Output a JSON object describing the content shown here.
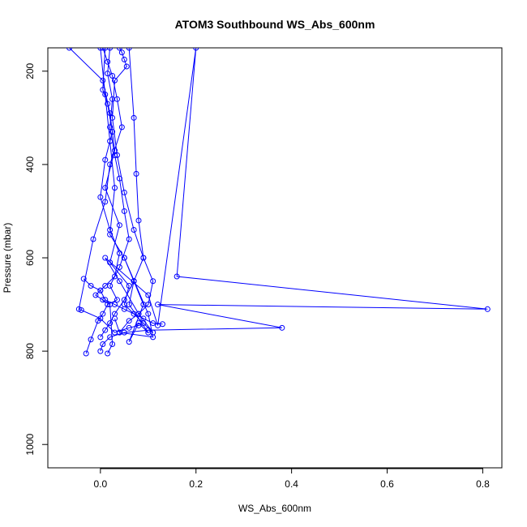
{
  "chart_data": {
    "type": "line",
    "title": "ATOM3 Southbound WS_Abs_600nm",
    "xlabel": "WS_Abs_600nm",
    "ylabel": "Pressure (mbar)",
    "xlim": [
      -0.11,
      0.84
    ],
    "ylim": [
      1050,
      150
    ],
    "y_reversed": true,
    "x_ticks": [
      0.0,
      0.2,
      0.4,
      0.6,
      0.8
    ],
    "x_tick_labels": [
      "0.0",
      "0.2",
      "0.4",
      "0.6",
      "0.8"
    ],
    "y_ticks": [
      200,
      400,
      600,
      800,
      1000
    ],
    "y_tick_labels": [
      "200",
      "400",
      "600",
      "800",
      "1000"
    ],
    "grid": false,
    "legend": "none",
    "series_color": "#0000ff",
    "series": [
      {
        "x": [
          -0.065,
          0.005,
          0.02,
          0.03,
          0.01,
          0.04,
          0.02,
          0.06,
          0.05,
          0.09,
          0.11,
          0.08,
          0.04,
          0.01,
          0.1,
          0.12,
          0.2,
          0.16,
          0.81,
          0.12,
          0.38,
          0.1,
          0.05,
          0.02,
          0.005,
          0.0
        ],
        "y": [
          150,
          220,
          290,
          370,
          450,
          530,
          610,
          660,
          700,
          740,
          760,
          720,
          650,
          600,
          680,
          745,
          150,
          640,
          710,
          700,
          750,
          755,
          760,
          770,
          785,
          800
        ]
      },
      {
        "x": [
          0.0,
          0.01,
          0.02,
          0.03,
          0.02,
          0.05,
          0.07,
          0.06,
          0.1,
          0.08,
          0.06,
          0.09,
          0.07,
          0.05,
          0.1,
          0.11,
          0.04,
          0.03
        ],
        "y": [
          150,
          250,
          350,
          450,
          550,
          600,
          650,
          700,
          760,
          740,
          780,
          700,
          650,
          600,
          720,
          770,
          760,
          730
        ]
      },
      {
        "x": [
          0.005,
          0.015,
          0.025,
          0.035,
          0.045,
          0.02,
          0.01,
          -0.015,
          -0.045,
          -0.04,
          0.0,
          0.03,
          0.06,
          0.08
        ],
        "y": [
          150,
          180,
          210,
          260,
          320,
          400,
          480,
          560,
          710,
          712,
          730,
          760,
          750,
          745
        ]
      },
      {
        "x": [
          0.02,
          0.015,
          0.025,
          0.02,
          0.03,
          0.04,
          0.05,
          0.06,
          0.04,
          0.02,
          0.035,
          0.015,
          0.005,
          -0.005,
          -0.02,
          -0.03
        ],
        "y": [
          150,
          205,
          260,
          320,
          380,
          430,
          500,
          560,
          620,
          660,
          690,
          700,
          720,
          735,
          775,
          805
        ]
      },
      {
        "x": [
          0.04,
          0.045,
          0.05,
          0.055,
          0.03,
          0.025,
          0.035,
          0.05,
          0.07,
          0.09,
          0.11,
          0.1,
          0.08,
          0.06,
          0.04
        ],
        "y": [
          150,
          160,
          175,
          190,
          220,
          300,
          380,
          460,
          540,
          600,
          650,
          700,
          720,
          735,
          760
        ]
      },
      {
        "x": [
          0.01,
          0.005,
          0.015,
          0.025,
          0.01,
          0.0,
          0.02,
          0.04,
          0.03,
          0.01,
          0.0,
          -0.01,
          0.005,
          0.02,
          0.025,
          0.015
        ],
        "y": [
          150,
          240,
          270,
          330,
          390,
          470,
          540,
          590,
          640,
          660,
          670,
          680,
          690,
          700,
          785,
          805
        ]
      },
      {
        "x": [
          0.06,
          0.07,
          0.075,
          0.08,
          0.09,
          0.07,
          0.05,
          0.03,
          0.02,
          0.01,
          0.0
        ],
        "y": [
          150,
          300,
          420,
          520,
          600,
          650,
          690,
          720,
          740,
          755,
          770
        ]
      },
      {
        "x": [
          -0.035,
          -0.02,
          0.0,
          0.01,
          0.03,
          0.05,
          0.07,
          0.09,
          0.11,
          0.13
        ],
        "y": [
          645,
          660,
          670,
          690,
          700,
          710,
          720,
          730,
          740,
          742
        ]
      }
    ]
  }
}
